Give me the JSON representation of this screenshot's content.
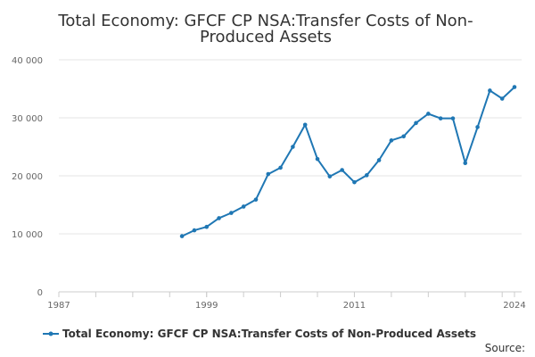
{
  "chart_data": {
    "type": "line",
    "title_lines": [
      "Total Economy: GFCF CP NSA:Transfer Costs of Non-",
      "Produced Assets"
    ],
    "xlabel": "",
    "ylabel": "",
    "xlim": [
      1987,
      2024
    ],
    "ylim": [
      0,
      40000
    ],
    "x_ticks": [
      "1987",
      "1999",
      "2011",
      "2024"
    ],
    "x_tick_values": [
      1987,
      1999,
      2011,
      2024
    ],
    "y_ticks": [
      "0",
      "10 000",
      "20 000",
      "30 000",
      "40 000"
    ],
    "y_tick_values": [
      0,
      10000,
      20000,
      30000,
      40000
    ],
    "grid": "horizontal",
    "legend_position": "bottom",
    "series": [
      {
        "name": "Total Economy: GFCF CP NSA:Transfer Costs of Non-Produced Assets",
        "color": "#1f77b4",
        "x": [
          1997,
          1998,
          1999,
          2000,
          2001,
          2002,
          2003,
          2004,
          2005,
          2006,
          2007,
          2008,
          2009,
          2010,
          2011,
          2012,
          2013,
          2014,
          2015,
          2016,
          2017,
          2018,
          2019,
          2020,
          2021,
          2022,
          2023,
          2024
        ],
        "values": [
          9600,
          10600,
          11200,
          12700,
          13600,
          14700,
          15900,
          20300,
          21400,
          25000,
          28800,
          22900,
          19900,
          21000,
          18900,
          20100,
          22700,
          26100,
          26800,
          29100,
          30700,
          29900,
          29900,
          22200,
          28400,
          34700,
          33300,
          35300
        ]
      }
    ],
    "source_label": "Source:"
  }
}
